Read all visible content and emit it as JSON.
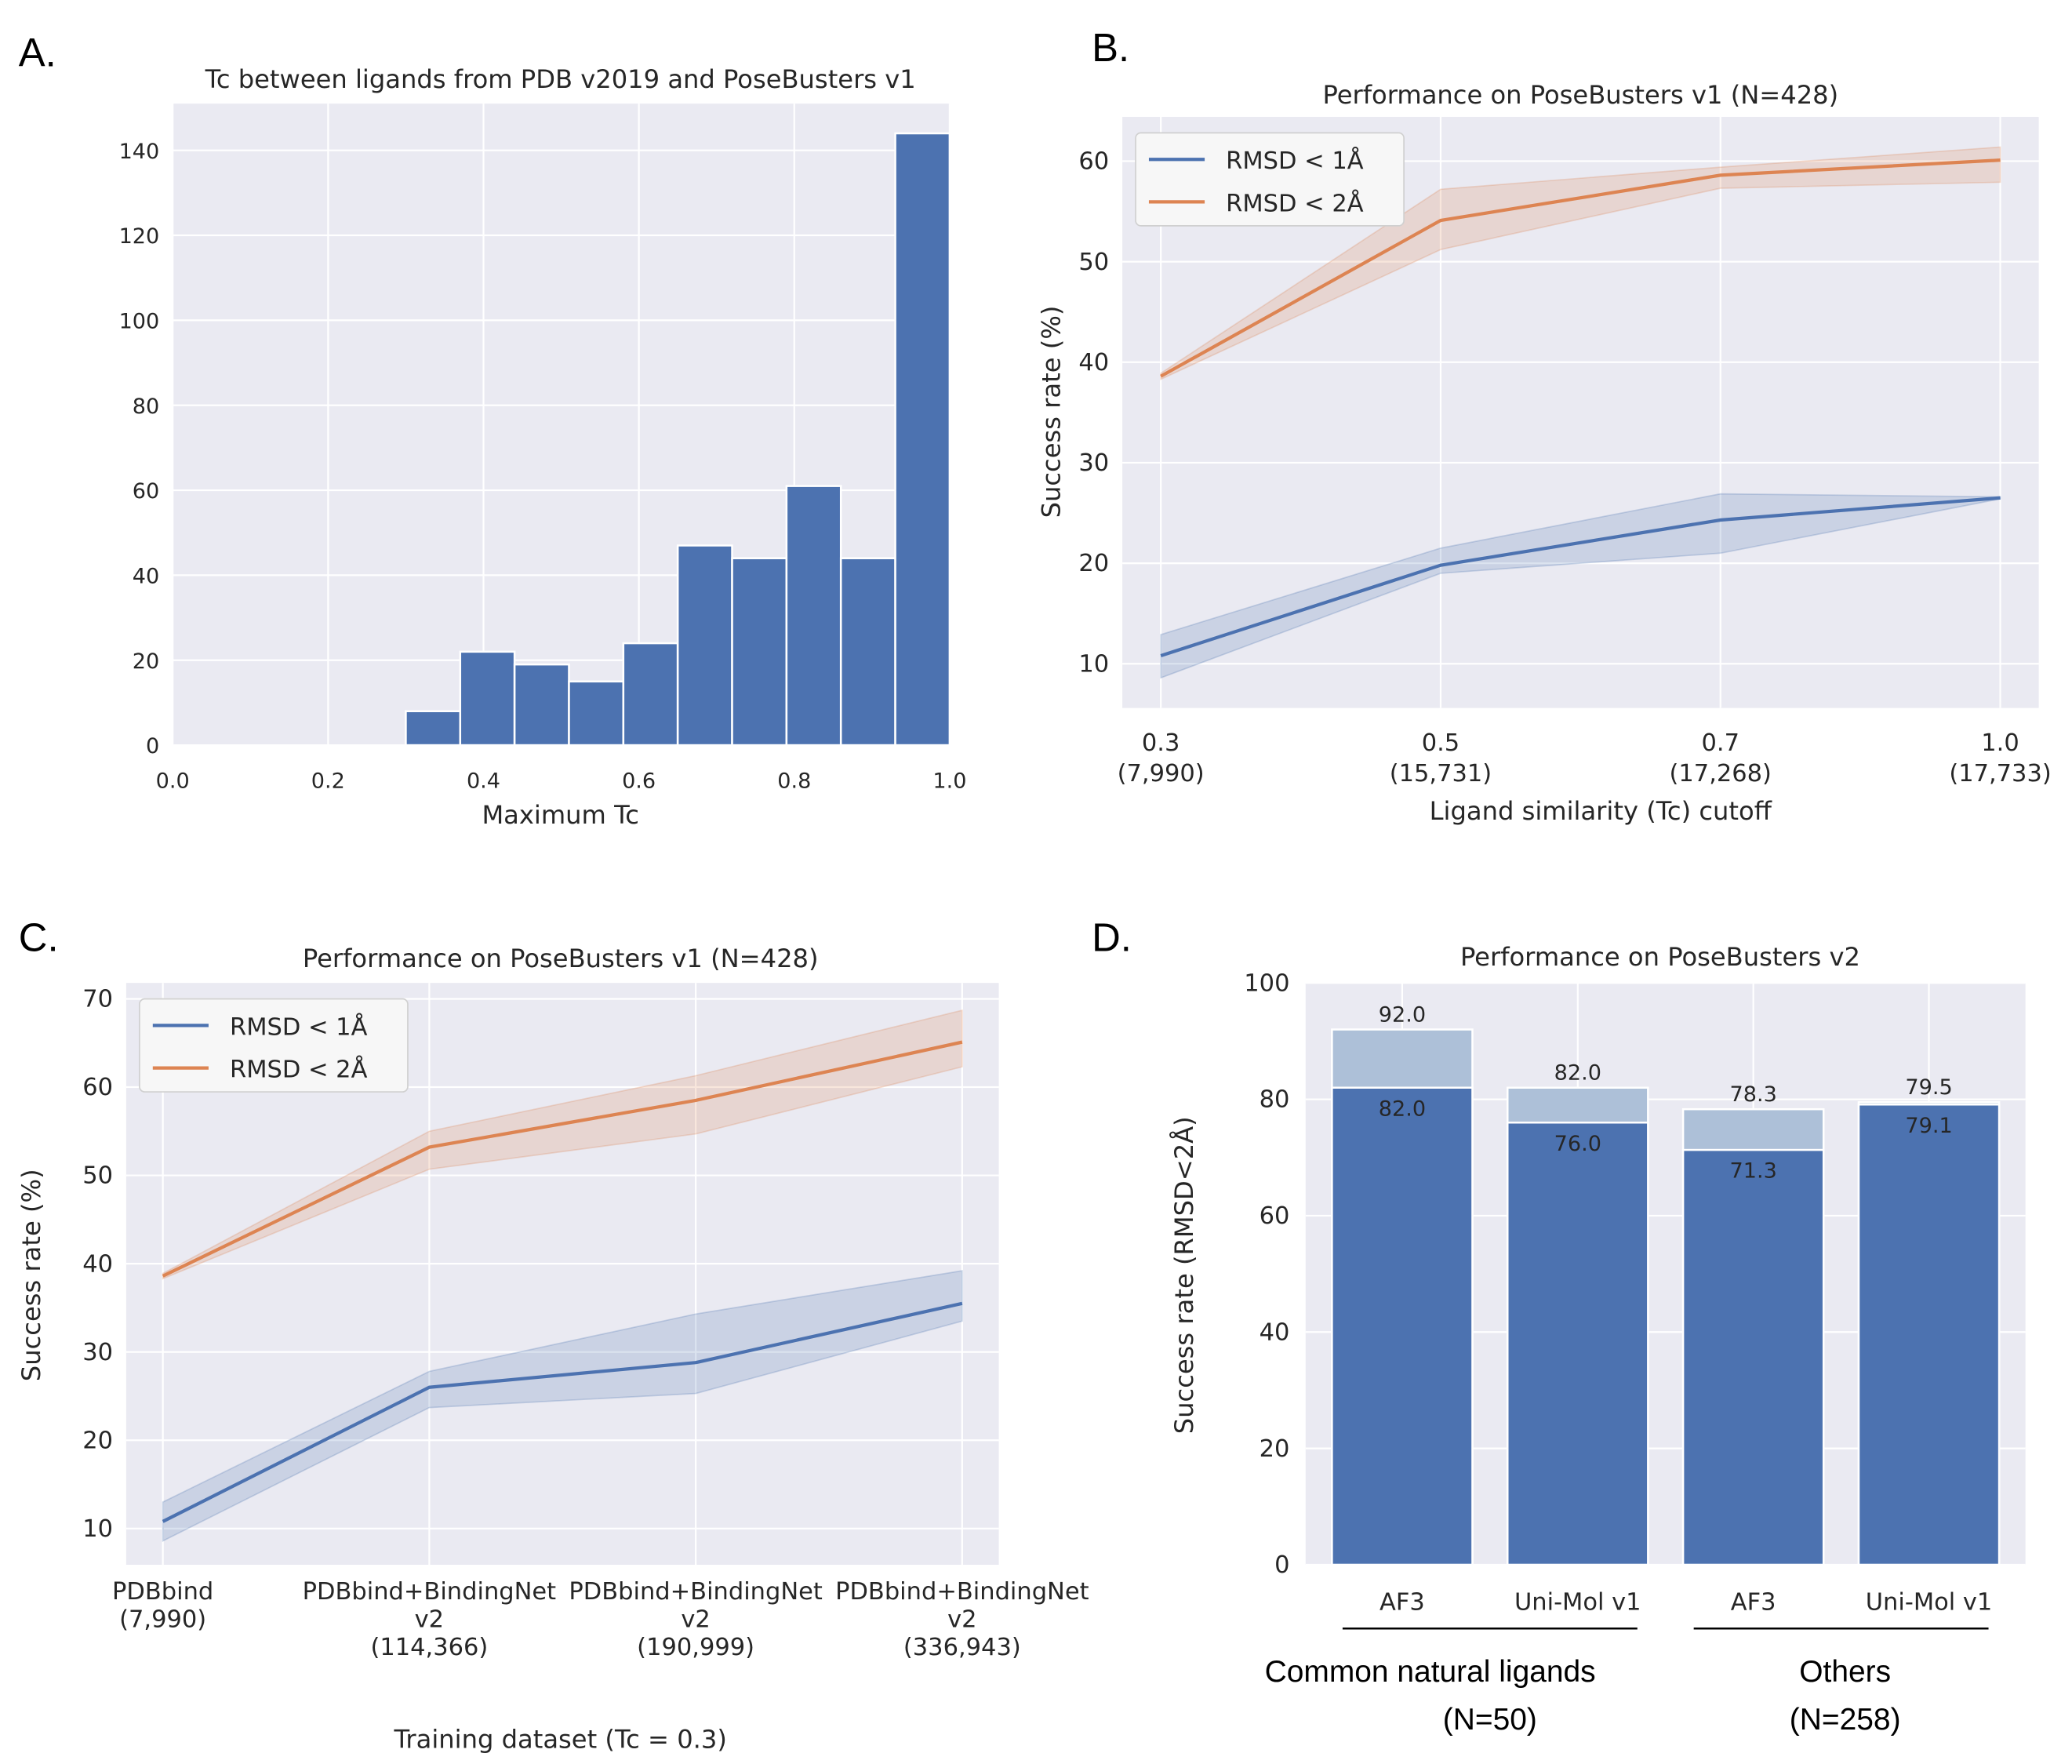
{
  "colors": {
    "blue": "#4c72b0",
    "orange": "#dd8452",
    "light_blue": "#adc0d8",
    "plot_bg": "#eaeaf2",
    "grid": "#ffffff"
  },
  "chart_data": [
    {
      "panel_label": "A.",
      "type": "bar",
      "title": "Tc between ligands from PDB v2019 and PoseBusters v1",
      "xlabel": "Maximum Tc",
      "ylabel": "",
      "bin_edges": [
        0.3,
        0.37,
        0.44,
        0.51,
        0.58,
        0.65,
        0.72,
        0.79,
        0.86,
        0.93,
        1.0
      ],
      "values": [
        8,
        22,
        19,
        15,
        24,
        47,
        44,
        61,
        44,
        144
      ],
      "xlim": [
        0,
        1
      ],
      "ylim": [
        0,
        151
      ],
      "xticks": [
        "0.0",
        "0.2",
        "0.4",
        "0.6",
        "0.8",
        "1.0"
      ],
      "yticks": [
        "0",
        "20",
        "40",
        "60",
        "80",
        "100",
        "120",
        "140"
      ],
      "grid": true
    },
    {
      "panel_label": "B.",
      "type": "line",
      "title": "Performance on PoseBusters v1 (N=428)",
      "xlabel": "Ligand similarity (Tc) cutoff",
      "ylabel": "Success rate (%)",
      "categories": [
        [
          "0.3",
          "(7,990)"
        ],
        [
          "0.5",
          "(15,731)"
        ],
        [
          "0.7",
          "(17,268)"
        ],
        [
          "1.0",
          "(17,733)"
        ]
      ],
      "ylim": [
        5.6,
        64.4
      ],
      "yticks": [
        "10",
        "20",
        "30",
        "40",
        "50",
        "60"
      ],
      "legend_position": "upper-left",
      "series": [
        {
          "name": "RMSD < 1Å",
          "color": "#4c72b0",
          "values": [
            10.8,
            19.8,
            24.3,
            26.5
          ],
          "lower": [
            8.6,
            19.0,
            21.0,
            26.4
          ],
          "upper": [
            12.9,
            21.5,
            26.9,
            26.6
          ]
        },
        {
          "name": "RMSD < 2Å",
          "color": "#dd8452",
          "values": [
            38.6,
            54.1,
            58.6,
            60.1
          ],
          "lower": [
            38.3,
            51.2,
            57.3,
            57.9
          ],
          "upper": [
            38.9,
            57.2,
            59.4,
            61.4
          ]
        }
      ],
      "grid": true
    },
    {
      "panel_label": "C.",
      "type": "line",
      "title": "Performance on PoseBusters v1 (N=428)",
      "xlabel": "Training dataset (Tc = 0.3)",
      "ylabel": "Success rate (%)",
      "categories": [
        [
          "PDBbind",
          "(7,990)"
        ],
        [
          "PDBbind+BindingNet v2",
          "(114,366)"
        ],
        [
          "PDBbind+BindingNet v2",
          "(190,999)"
        ],
        [
          "PDBbind+BindingNet v2",
          "(336,943)"
        ]
      ],
      "ylim": [
        5.9,
        71.8
      ],
      "yticks": [
        "10",
        "20",
        "30",
        "40",
        "50",
        "60",
        "70"
      ],
      "legend_position": "upper-left",
      "series": [
        {
          "name": "RMSD < 1Å",
          "color": "#4c72b0",
          "values": [
            10.8,
            26.0,
            28.8,
            35.5
          ],
          "lower": [
            8.6,
            23.7,
            25.3,
            33.5
          ],
          "upper": [
            13.0,
            27.8,
            34.3,
            39.2
          ]
        },
        {
          "name": "RMSD < 2Å",
          "color": "#dd8452",
          "values": [
            38.6,
            53.2,
            58.5,
            65.1
          ],
          "lower": [
            38.3,
            50.7,
            54.7,
            62.3
          ],
          "upper": [
            38.9,
            55.0,
            61.3,
            68.7
          ]
        }
      ],
      "grid": true
    },
    {
      "panel_label": "D.",
      "type": "bar",
      "title": "Performance on PoseBusters v2",
      "xlabel": "",
      "ylabel": "Success rate (RMSD<2Å)",
      "categories": [
        "AF3",
        "Uni-Mol v1",
        "AF3",
        "Uni-Mol v1"
      ],
      "ylim": [
        0,
        100
      ],
      "yticks": [
        "0",
        "20",
        "40",
        "60",
        "80",
        "100"
      ],
      "series": [
        {
          "values": [
            82.0,
            76.0,
            71.3,
            79.1
          ],
          "labels": [
            "82.0",
            "76.0",
            "71.3",
            "79.1"
          ],
          "color": "#4c72b0"
        },
        {
          "values": [
            92.0,
            82.0,
            78.3,
            79.5
          ],
          "labels": [
            "92.0",
            "82.0",
            "78.3",
            "79.5"
          ],
          "color": "#adc0d8"
        }
      ],
      "groups": [
        {
          "label": "Common natural ligands",
          "sub": "(N=50)"
        },
        {
          "label": "Others",
          "sub": "(N=258)"
        }
      ],
      "grid": true
    }
  ]
}
